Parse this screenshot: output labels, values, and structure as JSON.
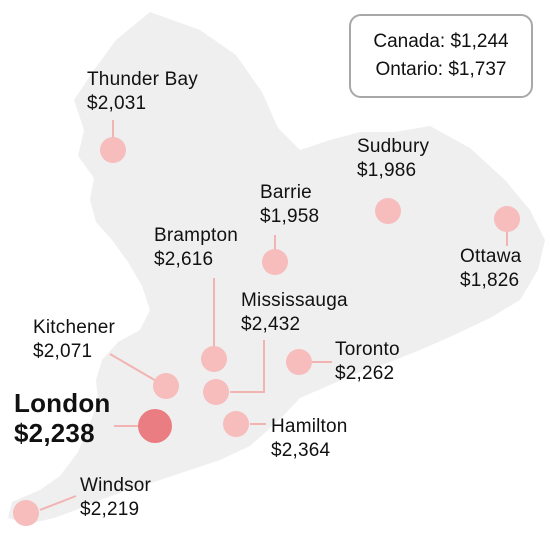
{
  "legend": {
    "canada": "Canada: $1,244",
    "ontario": "Ontario: $1,737"
  },
  "colors": {
    "landmass": "#efefef",
    "marker": "#f7bcbc",
    "marker_highlight": "#e97d82",
    "leader_line": "#f2b3b3"
  },
  "cities": [
    {
      "id": "thunder-bay",
      "name": "Thunder Bay",
      "value": "$2,031",
      "highlight": false
    },
    {
      "id": "sudbury",
      "name": "Sudbury",
      "value": "$1,986",
      "highlight": false
    },
    {
      "id": "barrie",
      "name": "Barrie",
      "value": "$1,958",
      "highlight": false
    },
    {
      "id": "ottawa",
      "name": "Ottawa",
      "value": "$1,826",
      "highlight": false
    },
    {
      "id": "brampton",
      "name": "Brampton",
      "value": "$2,616",
      "highlight": false
    },
    {
      "id": "mississauga",
      "name": "Mississauga",
      "value": "$2,432",
      "highlight": false
    },
    {
      "id": "kitchener",
      "name": "Kitchener",
      "value": "$2,071",
      "highlight": false
    },
    {
      "id": "toronto",
      "name": "Toronto",
      "value": "$2,262",
      "highlight": false
    },
    {
      "id": "london",
      "name": "London",
      "value": "$2,238",
      "highlight": true
    },
    {
      "id": "hamilton",
      "name": "Hamilton",
      "value": "$2,364",
      "highlight": false
    },
    {
      "id": "windsor",
      "name": "Windsor",
      "value": "$2,219",
      "highlight": false
    }
  ]
}
